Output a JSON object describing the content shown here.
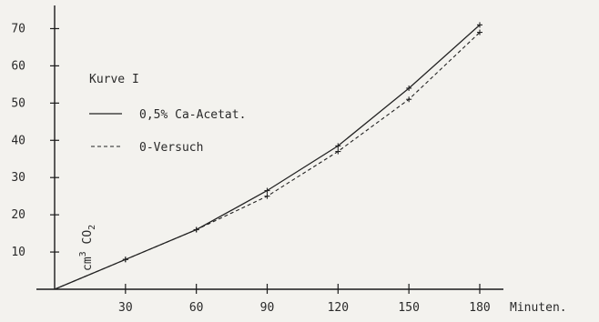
{
  "chart_data": {
    "type": "line",
    "title": "",
    "xlabel": "Minuten.",
    "ylabel_parts": {
      "unit": "cm",
      "exponent": "3",
      "substance": "CO",
      "subscript": "2"
    },
    "xlim": [
      0,
      180
    ],
    "ylim": [
      0,
      75
    ],
    "x_ticks": [
      "30",
      "60",
      "90",
      "120",
      "150",
      "180"
    ],
    "y_ticks": [
      "10",
      "20",
      "30",
      "40",
      "50",
      "60",
      "70"
    ],
    "grid": false,
    "legend_title": "Kurve I",
    "legend_placement": "top-left",
    "x": [
      0,
      30,
      60,
      90,
      120,
      150,
      180
    ],
    "series": [
      {
        "name": "0,5% Ca-Acetat.",
        "style": "solid",
        "values": [
          0,
          8,
          16,
          26.5,
          38.5,
          54,
          71
        ]
      },
      {
        "name": "0-Versuch",
        "style": "dashed",
        "values": [
          0,
          8,
          16,
          25,
          37,
          51,
          69
        ]
      }
    ]
  },
  "colors": {
    "background": "#f3f2ee",
    "ink": "#222222"
  }
}
